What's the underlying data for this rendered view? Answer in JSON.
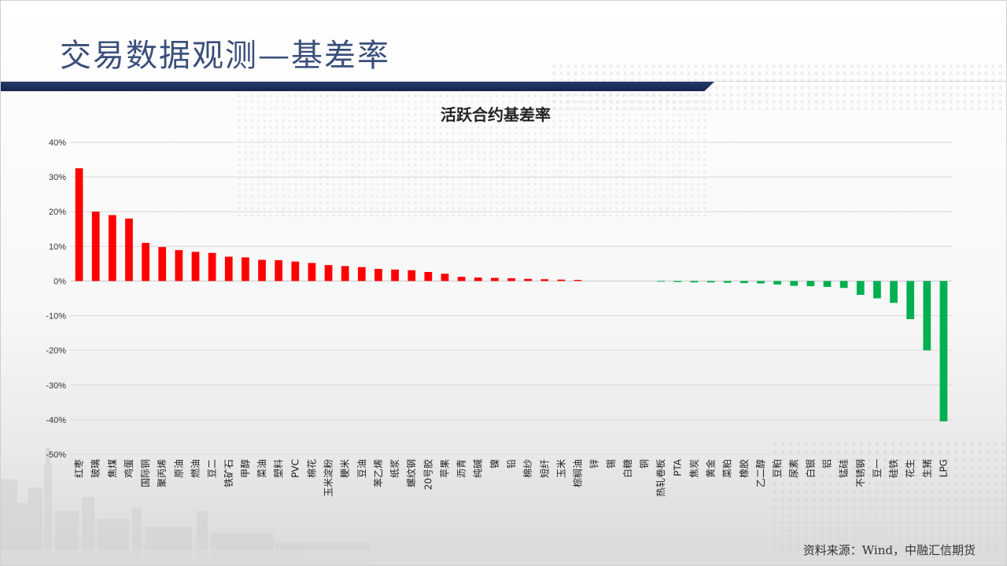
{
  "header": {
    "title": "交易数据观测—基差率"
  },
  "footer": {
    "source": "资料来源：Wind，中融汇信期货"
  },
  "colors": {
    "positive": "#ff0000",
    "negative": "#00b050",
    "title_bar": "#1f3564",
    "title_text": "#3a4f7a"
  },
  "chart_data": {
    "type": "bar",
    "title": "活跃合约基差率",
    "xlabel": "",
    "ylabel": "",
    "ylim": [
      -50,
      40
    ],
    "yticks": [
      40,
      30,
      20,
      10,
      0,
      -10,
      -20,
      -30,
      -40,
      -50
    ],
    "ytick_labels": [
      "40%",
      "30%",
      "20%",
      "10%",
      "0%",
      "-10%",
      "-20%",
      "-30%",
      "-40%",
      "-50%"
    ],
    "grid": true,
    "legend": "none",
    "categories": [
      "红枣",
      "玻璃",
      "焦煤",
      "鸡蛋",
      "国际铜",
      "聚丙烯",
      "原油",
      "燃油",
      "豆二",
      "铁矿石",
      "甲醇",
      "菜油",
      "塑料",
      "PVC",
      "棉花",
      "玉米淀粉",
      "粳米",
      "豆油",
      "苯乙烯",
      "纸浆",
      "螺纹钢",
      "20号胶",
      "苹果",
      "沥青",
      "纯碱",
      "镍",
      "铅",
      "棉纱",
      "短纤",
      "玉米",
      "棕榈油",
      "锌",
      "锡",
      "白糖",
      "铜",
      "热轧卷板",
      "PTA",
      "焦炭",
      "黄金",
      "菜粕",
      "橡胶",
      "乙二醇",
      "豆粕",
      "尿素",
      "白银",
      "铝",
      "锰硅",
      "不锈钢",
      "豆一",
      "硅铁",
      "花生",
      "生猪",
      "LPG"
    ],
    "values": [
      32.5,
      20.0,
      19.0,
      18.0,
      11.0,
      9.8,
      8.9,
      8.4,
      8.1,
      7.0,
      6.8,
      6.1,
      6.0,
      5.6,
      5.2,
      4.6,
      4.3,
      4.0,
      3.5,
      3.3,
      3.1,
      2.6,
      2.1,
      1.2,
      1.0,
      0.9,
      0.8,
      0.6,
      0.5,
      0.4,
      0.3,
      0.0,
      0.0,
      0.0,
      0.0,
      -0.2,
      -0.3,
      -0.4,
      -0.4,
      -0.5,
      -0.6,
      -0.7,
      -1.0,
      -1.4,
      -1.5,
      -1.7,
      -2.0,
      -4.0,
      -5.0,
      -6.3,
      -11.0,
      -20.0,
      -40.5
    ]
  }
}
